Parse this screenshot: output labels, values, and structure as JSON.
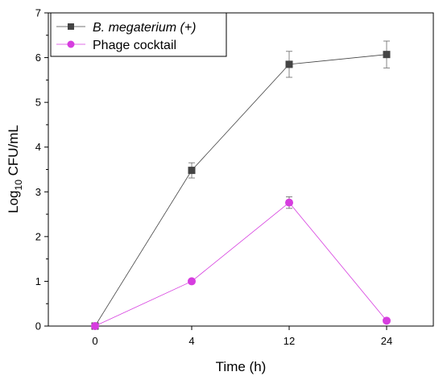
{
  "chart_data": {
    "type": "line",
    "xlabel": "Time (h)",
    "ylabel_main": "Log",
    "ylabel_sub": "10",
    "ylabel_rest": " CFU/mL",
    "categories": [
      "0",
      "4",
      "12",
      "24"
    ],
    "ylim": [
      0,
      7
    ],
    "yticks": [
      0,
      1,
      2,
      3,
      4,
      5,
      6,
      7
    ],
    "grid": false,
    "legend_position": "top-left",
    "series": [
      {
        "name": "B. megaterium (+)",
        "marker": "square",
        "color": "#444444",
        "values": [
          0,
          3.48,
          5.85,
          6.07
        ],
        "errors": [
          0,
          0.17,
          0.29,
          0.3
        ]
      },
      {
        "name": "Phage cocktail",
        "marker": "circle",
        "color": "#d63ddf",
        "values": [
          0,
          1.0,
          2.76,
          0.12
        ],
        "errors": [
          0,
          0,
          0.13,
          0
        ]
      }
    ]
  }
}
